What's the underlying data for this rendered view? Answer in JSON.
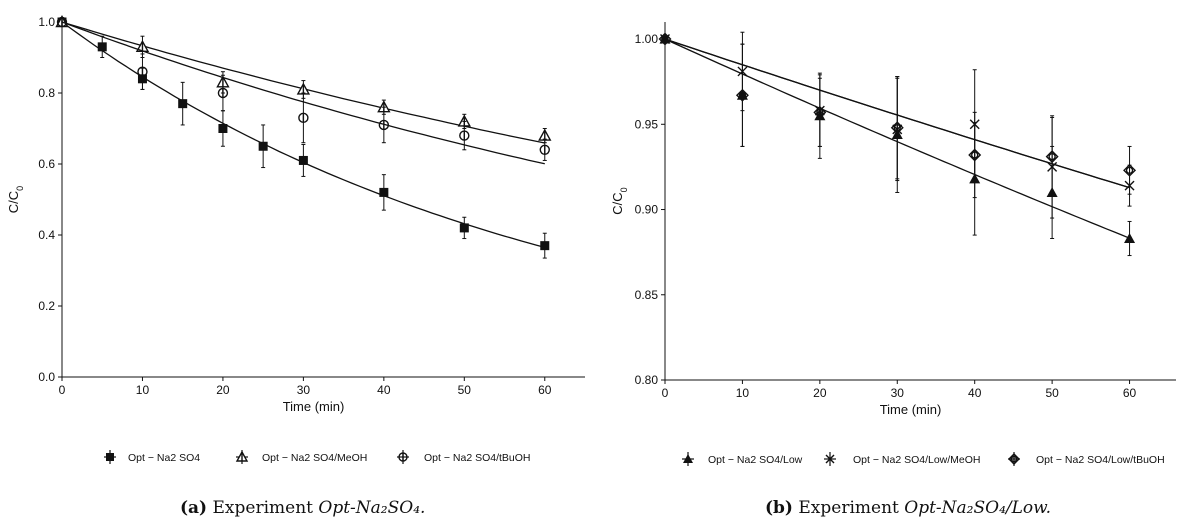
{
  "captions": [
    {
      "tag": "(a)",
      "text": "Experiment",
      "name": "Opt-Na₂SO₄."
    },
    {
      "tag": "(b)",
      "text": "Experiment",
      "name": "Opt-Na₂SO₄/Low."
    }
  ],
  "chart_data": [
    {
      "type": "scatter",
      "xlabel": "Time (min)",
      "ylabel": "C/C0",
      "xlim": [
        0,
        65
      ],
      "ylim": [
        0,
        1.0
      ],
      "xticks": [
        0,
        10,
        20,
        30,
        40,
        50,
        60
      ],
      "yticks": [
        0.0,
        0.2,
        0.4,
        0.6,
        0.8,
        1.0
      ],
      "ytick_labels": [
        "0.0",
        "0.2",
        "0.4",
        "0.6",
        "0.8",
        "1.0"
      ],
      "grid": false,
      "legend_position": "bottom",
      "series": [
        {
          "name": "Opt − Na2 SO4",
          "marker": "filled-square",
          "color": "#111111",
          "x": [
            0,
            5,
            10,
            15,
            20,
            25,
            30,
            40,
            50,
            60
          ],
          "y": [
            1.0,
            0.93,
            0.84,
            0.77,
            0.7,
            0.65,
            0.61,
            0.52,
            0.42,
            0.37
          ],
          "err": [
            0,
            0.03,
            0.03,
            0.06,
            0.05,
            0.06,
            0.045,
            0.05,
            0.03,
            0.035
          ],
          "fit": {
            "a": 1.0,
            "k": 0.0168
          }
        },
        {
          "name": "Opt − Na2 SO4/MeOH",
          "marker": "open-triangle",
          "color": "#111111",
          "x": [
            0,
            10,
            20,
            30,
            40,
            50,
            60
          ],
          "y": [
            1.0,
            0.93,
            0.83,
            0.81,
            0.76,
            0.72,
            0.68
          ],
          "err": [
            0,
            0.03,
            0.03,
            0.025,
            0.02,
            0.02,
            0.02
          ],
          "fit": {
            "a": 1.0,
            "k": 0.00695
          }
        },
        {
          "name": "Opt − Na2 SO4/tBuOH",
          "marker": "open-circle",
          "color": "#111111",
          "x": [
            0,
            10,
            20,
            30,
            40,
            50,
            60
          ],
          "y": [
            1.0,
            0.86,
            0.8,
            0.73,
            0.71,
            0.68,
            0.64
          ],
          "err": [
            0,
            0.05,
            0.05,
            0.07,
            0.05,
            0.04,
            0.03
          ],
          "fit": {
            "a": 1.0,
            "k": 0.0085
          }
        }
      ]
    },
    {
      "type": "scatter",
      "xlabel": "Time (min)",
      "ylabel": "C/C0",
      "xlim": [
        0,
        66
      ],
      "ylim": [
        0.8,
        1.01
      ],
      "xticks": [
        0,
        10,
        20,
        30,
        40,
        50,
        60
      ],
      "yticks": [
        0.8,
        0.85,
        0.9,
        0.95,
        1.0
      ],
      "ytick_labels": [
        "0.80",
        "0.85",
        "0.90",
        "0.95",
        "1.00"
      ],
      "grid": false,
      "legend_position": "bottom",
      "series": [
        {
          "name": "Opt − Na2 SO4/Low",
          "marker": "filled-triangle",
          "color": "#111111",
          "x": [
            0,
            10,
            20,
            30,
            40,
            50,
            60
          ],
          "y": [
            1.0,
            0.967,
            0.955,
            0.944,
            0.918,
            0.91,
            0.883
          ],
          "err": [
            0,
            0.03,
            0.025,
            0.034,
            0.033,
            0.027,
            0.01
          ],
          "fit": {
            "a": 1.0,
            "k": 0.00207
          }
        },
        {
          "name": "Opt − Na2 SO4/Low/MeOH",
          "marker": "cross",
          "color": "#111111",
          "x": [
            0,
            10,
            20,
            30,
            40,
            50,
            60
          ],
          "y": [
            1.0,
            0.981,
            0.958,
            0.947,
            0.95,
            0.925,
            0.914
          ],
          "err": [
            0,
            0.023,
            0.021,
            0.03,
            0.032,
            0.03,
            0.012
          ],
          "fit": {
            "a": 1.0,
            "k": 0.00152
          }
        },
        {
          "name": "Opt − Na2 SO4/Low/tBuOH",
          "marker": "diamond-circle",
          "color": "#111111",
          "x": [
            0,
            10,
            20,
            30,
            40,
            50,
            60
          ],
          "y": [
            1.0,
            0.967,
            0.957,
            0.948,
            0.932,
            0.931,
            0.923
          ],
          "err": [
            0,
            0.03,
            0.02,
            0.03,
            0.025,
            0.023,
            0.014
          ],
          "fit": {
            "a": 1.0,
            "k": 0.00152
          }
        }
      ]
    }
  ]
}
